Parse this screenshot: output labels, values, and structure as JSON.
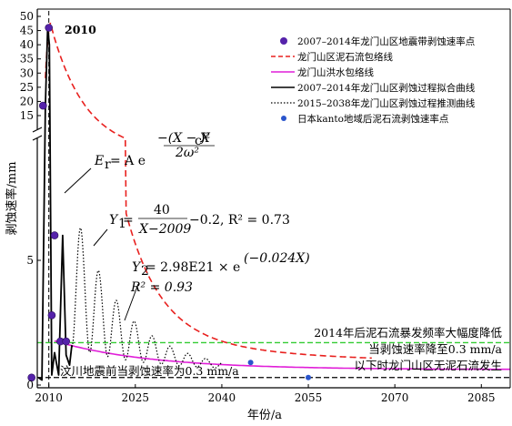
{
  "chart_data": {
    "type": "line",
    "xlabel": "年份/a",
    "ylabel": "剥蚀速率/mm",
    "xlim": [
      2008,
      2090
    ],
    "x_ticks": [
      2010,
      2025,
      2040,
      2055,
      2070,
      2085
    ],
    "y_lower_ticks": [
      0,
      5
    ],
    "y_upper_ticks": [
      15,
      20,
      25,
      30,
      35,
      40,
      45,
      50
    ],
    "axis_break": true,
    "legend_position": "top-right",
    "legend": [
      "2007–2014年龙门山区地震带剥蚀速率点",
      "龙门山区泥石流包络线",
      "龙门山洪水包络线",
      "2007–2014年龙门山区剥蚀过程拟合曲线",
      "2015–2038年龙门山区剥蚀过程推测曲线",
      "日本kanto地域后泥石流剥蚀速率点"
    ],
    "series": [
      {
        "name": "2007–2014年龙门山区地震带剥蚀速率点",
        "x": [
          2007,
          2009,
          2010,
          2010.5,
          2011,
          2012,
          2013
        ],
        "y": [
          0.3,
          18.5,
          46,
          2.8,
          6.0,
          1.75,
          1.75
        ]
      },
      {
        "name": "日本kanto地域后泥石流剥蚀速率点",
        "x": [
          2045,
          2055
        ],
        "y": [
          0.9,
          0.3
        ]
      }
    ],
    "reference_lines": {
      "peak_year": 2010,
      "threshold_rate": 0.3,
      "green_level": 1.7
    },
    "colors": {
      "envelope": "#e8201e",
      "flood": "#e01ed8",
      "green": "#33cc33",
      "point": "#5522aa",
      "kanto": "#2a55cc"
    },
    "annotations": {
      "peak_label": "2010",
      "eq1_lhs": "E",
      "eq1_sub": "r",
      "eq1_mid": " = A e",
      "eq1_exp": "−(X − X",
      "eq1_exp_sub": "c",
      "eq1_exp_tail": ")²",
      "eq1_den": "2ω²",
      "eq2_y": "Y",
      "eq2_sub": "1",
      "eq2_eq": " =",
      "eq2_num": "40",
      "eq2_den": "X−2009",
      "eq2_tail": "−0.2, R² = 0.73",
      "eq3_y": "Y",
      "eq3_sub": "2",
      "eq3_body": " = 2.98E21 × e",
      "eq3_exp": "(−0.024X)",
      "eq3_r2": "R² = 0.93",
      "note1": "2014年后泥石流暴发频率大幅度降低",
      "note2": "当剥蚀速率降至0.3 mm/a",
      "note3": "以下时龙门山区无泥石流发生",
      "note4": "汶川地震前当剥蚀速率为0.3 mm/a"
    }
  }
}
